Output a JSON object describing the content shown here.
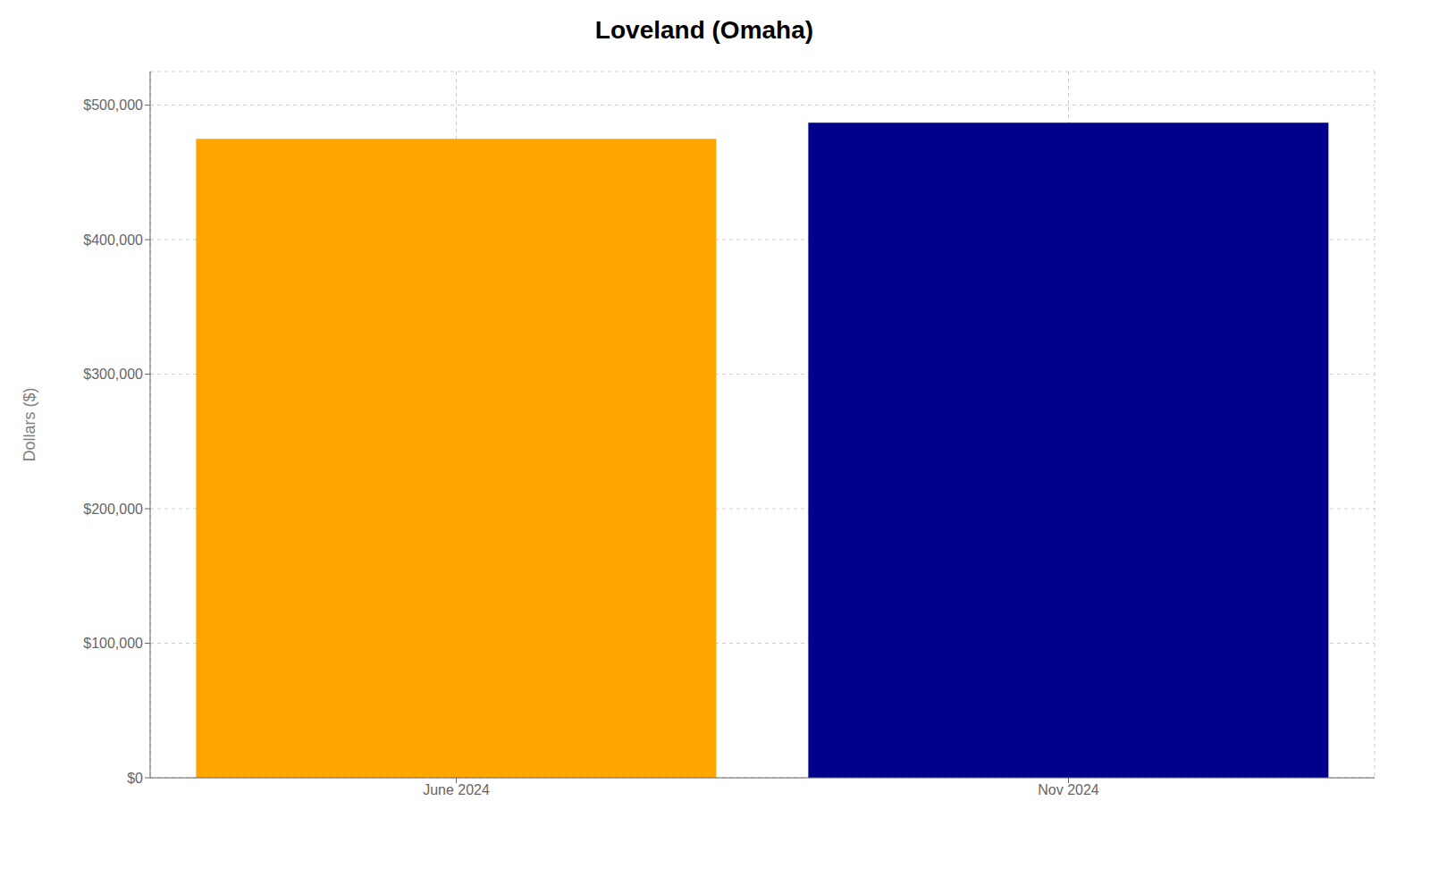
{
  "chart_data": {
    "type": "bar",
    "title": "Loveland (Omaha)",
    "categories": [
      "June 2024",
      "Nov 2024"
    ],
    "values": [
      475000,
      487000
    ],
    "colors": [
      "#FFA500",
      "#00008B"
    ],
    "ylabel": "Dollars ($)",
    "ylim": [
      0,
      525000
    ],
    "yticks": [
      {
        "value": 0,
        "label": "$0"
      },
      {
        "value": 100000,
        "label": "$100,000"
      },
      {
        "value": 200000,
        "label": "$200,000"
      },
      {
        "value": 300000,
        "label": "$300,000"
      },
      {
        "value": 400000,
        "label": "$400,000"
      },
      {
        "value": 500000,
        "label": "$500,000"
      }
    ],
    "grid": true
  }
}
